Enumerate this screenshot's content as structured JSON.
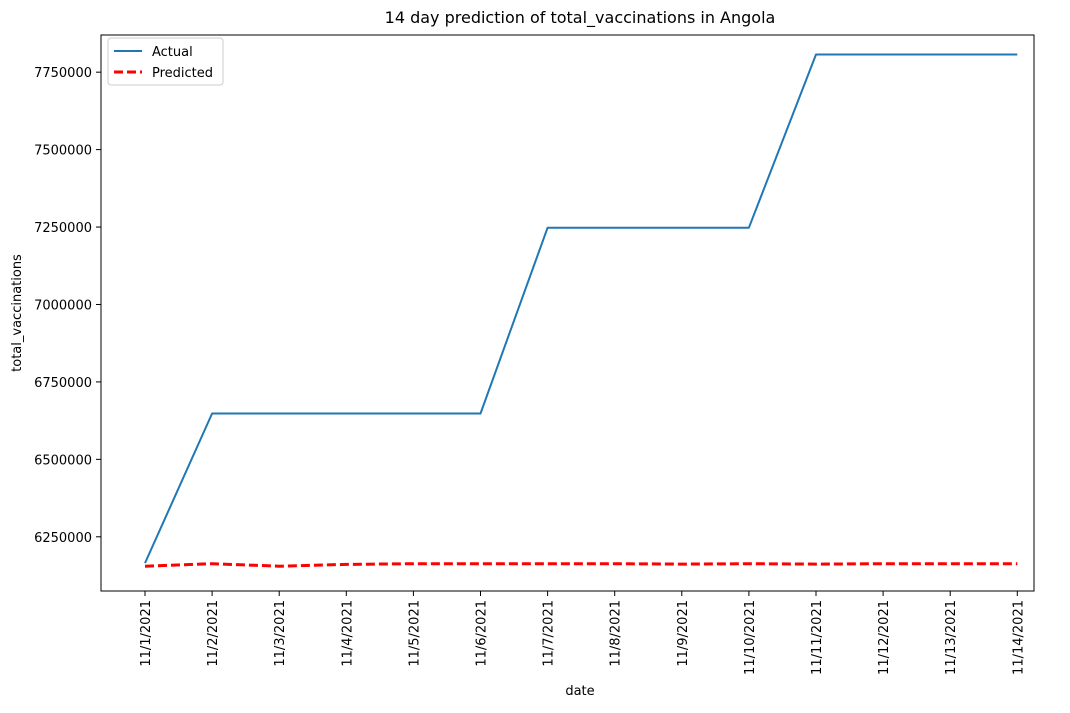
{
  "chart_data": {
    "type": "line",
    "title": "14 day prediction of total_vaccinations in Angola",
    "xlabel": "date",
    "ylabel": "total_vaccinations",
    "x": [
      "11/1/2021",
      "11/2/2021",
      "11/3/2021",
      "11/4/2021",
      "11/5/2021",
      "11/6/2021",
      "11/7/2021",
      "11/8/2021",
      "11/9/2021",
      "11/10/2021",
      "11/11/2021",
      "11/12/2021",
      "11/13/2021",
      "11/14/2021"
    ],
    "yticks": [
      6250000,
      6500000,
      6750000,
      7000000,
      7250000,
      7500000,
      7750000
    ],
    "ylim": [
      6075000,
      7870000
    ],
    "grid": false,
    "legend": "top-left",
    "series": [
      {
        "name": "Actual",
        "color": "#1f77b4",
        "style": "solid",
        "values": [
          6165000,
          6648000,
          6648000,
          6648000,
          6648000,
          6648000,
          7248000,
          7248000,
          7248000,
          7248000,
          7807000,
          7807000,
          7807000,
          7807000
        ]
      },
      {
        "name": "Predicted",
        "color": "#ff0000",
        "style": "dashed",
        "values": [
          6155000,
          6163000,
          6155000,
          6161000,
          6163000,
          6163000,
          6163000,
          6163000,
          6162000,
          6163000,
          6162000,
          6163000,
          6163000,
          6163000
        ]
      }
    ]
  }
}
